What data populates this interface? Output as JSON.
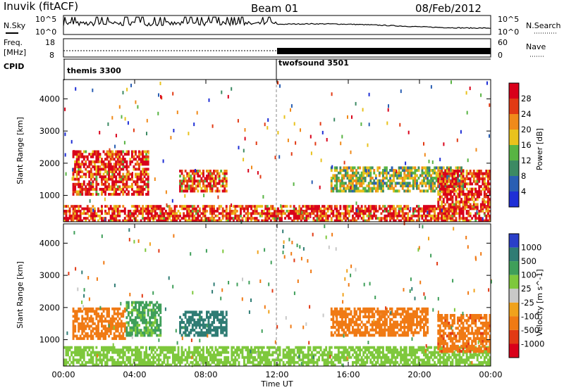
{
  "header": {
    "station": "Inuvik (fitACF)",
    "beam": "Beam 01",
    "date": "08/Feb/2012"
  },
  "summary_panels": {
    "nsky": {
      "label": "N.Sky",
      "ticks": [
        "10^5",
        "10^0"
      ]
    },
    "nsearch": {
      "label": "N.Search",
      "ticks": [
        "10^5",
        "10^0"
      ]
    },
    "freq": {
      "label_line1": "Freq.",
      "label_line2": "[MHz]",
      "ticks": [
        "18",
        "8"
      ]
    },
    "nave": {
      "label": "Nave",
      "ticks": [
        "60",
        "0"
      ]
    },
    "cpid": {
      "label": "CPID",
      "modes": [
        {
          "name": "themis 3300",
          "start": "00:00"
        },
        {
          "name": "twofsound 3501",
          "start": "12:00"
        }
      ]
    }
  },
  "chart_data": [
    {
      "type": "heatmap",
      "name": "power",
      "ylabel": "Slant Range [km]",
      "xlabel": "",
      "xlim": [
        "00:00",
        "24:00"
      ],
      "ylim": [
        180,
        4600
      ],
      "yticks": [
        1000,
        2000,
        3000,
        4000
      ],
      "colorbar": {
        "title": "Power [dB]",
        "ticks": [
          4,
          8,
          12,
          16,
          20,
          24,
          28
        ],
        "range": [
          0,
          30
        ],
        "colors": [
          "#1f2fd6",
          "#2a5fb3",
          "#3c8a63",
          "#58b443",
          "#e8c21c",
          "#f08a1a",
          "#e23a14",
          "#d9001a"
        ]
      },
      "regions": [
        {
          "t": [
            0.5,
            4.8
          ],
          "r": [
            1000,
            2400
          ],
          "value": 26
        },
        {
          "t": [
            0.0,
            24.0
          ],
          "r": [
            180,
            700
          ],
          "value": 26
        },
        {
          "t": [
            6.5,
            9.2
          ],
          "r": [
            1100,
            1800
          ],
          "value": 24
        },
        {
          "t": [
            15.0,
            22.5
          ],
          "r": [
            1100,
            1900
          ],
          "value": 14
        },
        {
          "t": [
            21.0,
            24.0
          ],
          "r": [
            600,
            1800
          ],
          "value": 27
        }
      ]
    },
    {
      "type": "heatmap",
      "name": "velocity",
      "ylabel": "Slant Range [km]",
      "xlabel": "Time UT",
      "xlim": [
        "00:00",
        "24:00"
      ],
      "xticks": [
        "00:00",
        "04:00",
        "08:00",
        "12:00",
        "16:00",
        "20:00",
        "00:00"
      ],
      "ylim": [
        180,
        4600
      ],
      "yticks": [
        1000,
        2000,
        3000,
        4000
      ],
      "colorbar": {
        "title": "Velocity [m s^-1]",
        "ticks": [
          "1000",
          "500",
          "100",
          "25",
          "-25",
          "-100",
          "-500",
          "-1000"
        ],
        "colors": [
          "#2a3fc9",
          "#2f7c74",
          "#3f9f5a",
          "#7ec83c",
          "#c8c8c8",
          "#f0a21c",
          "#f07a14",
          "#e23a14",
          "#d9001a"
        ]
      },
      "regions": [
        {
          "t": [
            0.5,
            3.5
          ],
          "r": [
            1000,
            2000
          ],
          "value": -200
        },
        {
          "t": [
            3.5,
            5.5
          ],
          "r": [
            1100,
            2200
          ],
          "value": 120
        },
        {
          "t": [
            6.5,
            9.2
          ],
          "r": [
            1100,
            1900
          ],
          "value": 700
        },
        {
          "t": [
            0.0,
            24.0
          ],
          "r": [
            180,
            800
          ],
          "value": 60
        },
        {
          "t": [
            15.0,
            20.5
          ],
          "r": [
            1100,
            2000
          ],
          "value": -180
        },
        {
          "t": [
            21.0,
            24.0
          ],
          "r": [
            600,
            1800
          ],
          "value": -400
        }
      ]
    }
  ]
}
